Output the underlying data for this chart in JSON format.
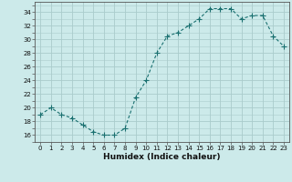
{
  "x": [
    0,
    1,
    2,
    3,
    4,
    5,
    6,
    7,
    8,
    9,
    10,
    11,
    12,
    13,
    14,
    15,
    16,
    17,
    18,
    19,
    20,
    21,
    22,
    23
  ],
  "y": [
    19,
    20,
    19,
    18.5,
    17.5,
    16.5,
    16,
    16,
    17,
    21.5,
    24,
    28,
    30.5,
    31,
    32,
    33,
    34.5,
    34.5,
    34.5,
    33,
    33.5,
    33.5,
    30.5,
    29
  ],
  "line_color": "#1a7070",
  "marker": "+",
  "marker_size": 4,
  "bg_color": "#cceaea",
  "grid_color": "#aacccc",
  "xlabel": "Humidex (Indice chaleur)",
  "ylim": [
    15,
    35.5
  ],
  "yticks": [
    16,
    18,
    20,
    22,
    24,
    26,
    28,
    30,
    32,
    34
  ],
  "xlim": [
    -0.5,
    23.5
  ],
  "xticks": [
    0,
    1,
    2,
    3,
    4,
    5,
    6,
    7,
    8,
    9,
    10,
    11,
    12,
    13,
    14,
    15,
    16,
    17,
    18,
    19,
    20,
    21,
    22,
    23
  ],
  "tick_fontsize": 5.0,
  "xlabel_fontsize": 6.5
}
